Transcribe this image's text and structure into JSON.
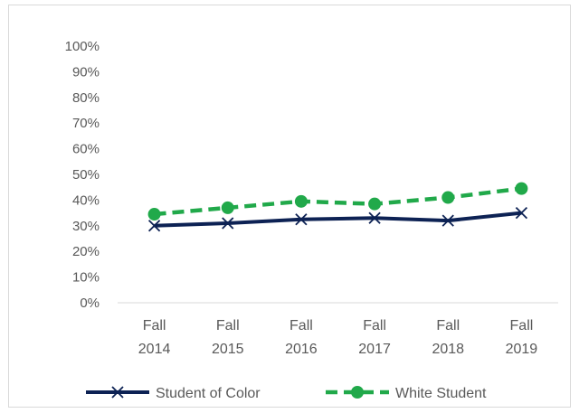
{
  "chart_data": {
    "type": "line",
    "title": "",
    "xlabel": "",
    "ylabel": "",
    "categories": [
      [
        "Fall",
        "2014"
      ],
      [
        "Fall",
        "2015"
      ],
      [
        "Fall",
        "2016"
      ],
      [
        "Fall",
        "2017"
      ],
      [
        "Fall",
        "2018"
      ],
      [
        "Fall",
        "2019"
      ]
    ],
    "ylim": [
      0,
      100
    ],
    "yticks": [
      "0%",
      "10%",
      "20%",
      "30%",
      "40%",
      "50%",
      "60%",
      "70%",
      "80%",
      "90%",
      "100%"
    ],
    "grid": true,
    "legend_position": "bottom",
    "series": [
      {
        "name": "Student of Color",
        "values": [
          30,
          31,
          32.5,
          33,
          32,
          35
        ],
        "color": "#0d2254",
        "style": "solid",
        "marker": "x"
      },
      {
        "name": "White Student",
        "values": [
          34.5,
          37,
          39.5,
          38.5,
          41,
          44.5
        ],
        "color": "#21a94a",
        "style": "dashed",
        "marker": "circle"
      }
    ]
  }
}
